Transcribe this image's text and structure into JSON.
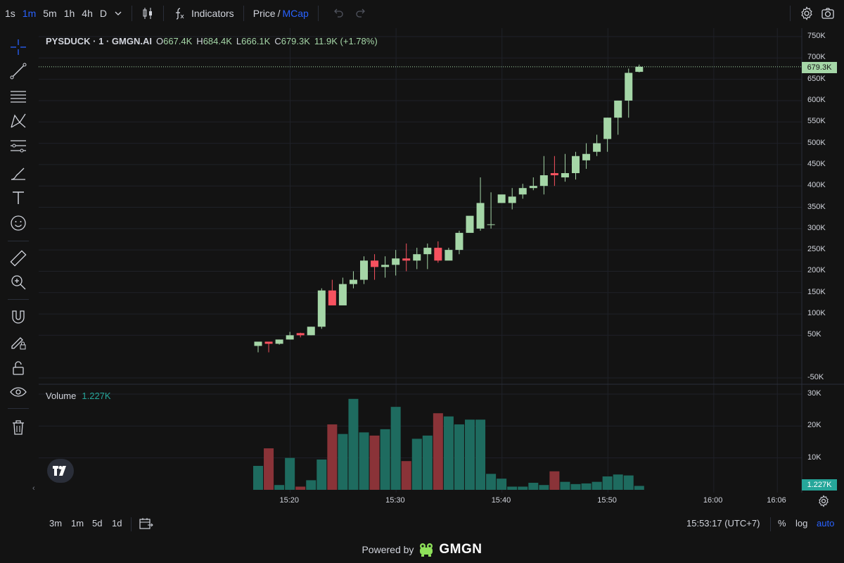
{
  "toolbar": {
    "intervals": [
      "1s",
      "1m",
      "5m",
      "1h",
      "4h",
      "D"
    ],
    "active_interval": "1m",
    "indicators_label": "Indicators",
    "price_label": "Price",
    "slash": "/",
    "mcap_label": "MCap"
  },
  "legend": {
    "symbol": "PYSDUCK · 1 · GMGN.AI",
    "o_label": "O",
    "o_value": "667.4K",
    "h_label": "H",
    "h_value": "684.4K",
    "l_label": "L",
    "l_value": "666.1K",
    "c_label": "C",
    "c_value": "679.3K",
    "change": "11.9K (+1.78%)"
  },
  "volume_legend": {
    "label": "Volume",
    "value": "1.227K"
  },
  "price_axis": {
    "labels": [
      "750K",
      "700K",
      "650K",
      "600K",
      "550K",
      "500K",
      "450K",
      "400K",
      "350K",
      "300K",
      "250K",
      "200K",
      "150K",
      "100K",
      "50K",
      "-50K"
    ],
    "current_price": "679.3K"
  },
  "volume_axis": {
    "labels": [
      "30K",
      "20K",
      "10K"
    ],
    "current_volume": "1.227K"
  },
  "time_axis": {
    "labels": [
      "15:20",
      "15:30",
      "15:40",
      "15:50",
      "16:00",
      "16:06"
    ]
  },
  "bottom": {
    "ranges": [
      "3m",
      "1m",
      "5d",
      "1d"
    ],
    "clock": "15:53:17 (UTC+7)",
    "percent_label": "%",
    "log_label": "log",
    "auto_label": "auto"
  },
  "footer": {
    "powered_by": "Powered by",
    "brand": "GMGN"
  },
  "colors": {
    "up": "#a5d6a7",
    "down": "#f7525f",
    "vol_up": "#1e6b5f",
    "vol_down": "#8a3338",
    "accent": "#2962ff",
    "background": "#131313"
  },
  "chart_data": {
    "type": "candlestick",
    "x": [
      "15:17",
      "15:18",
      "15:19",
      "15:20",
      "15:21",
      "15:22",
      "15:23",
      "15:24",
      "15:25",
      "15:26",
      "15:27",
      "15:28",
      "15:29",
      "15:30",
      "15:31",
      "15:32",
      "15:33",
      "15:34",
      "15:35",
      "15:36",
      "15:37",
      "15:38",
      "15:39",
      "15:40",
      "15:41",
      "15:42",
      "15:43",
      "15:44",
      "15:45",
      "15:46",
      "15:47",
      "15:48",
      "15:49",
      "15:50",
      "15:51",
      "15:52",
      "15:53"
    ],
    "open": [
      25,
      35,
      30,
      40,
      55,
      50,
      70,
      155,
      120,
      170,
      180,
      225,
      210,
      215,
      230,
      225,
      240,
      255,
      225,
      250,
      290,
      300,
      310,
      360,
      360,
      380,
      395,
      400,
      430,
      420,
      430,
      460,
      480,
      510,
      560,
      600,
      667.4
    ],
    "high": [
      35,
      35,
      40,
      58,
      56,
      70,
      160,
      180,
      185,
      200,
      235,
      240,
      235,
      250,
      265,
      255,
      265,
      270,
      255,
      295,
      320,
      420,
      385,
      375,
      395,
      405,
      420,
      470,
      470,
      475,
      480,
      500,
      520,
      560,
      600,
      675,
      684.4
    ],
    "low": [
      10,
      10,
      28,
      40,
      45,
      50,
      65,
      125,
      130,
      160,
      170,
      180,
      185,
      190,
      200,
      205,
      205,
      220,
      230,
      240,
      300,
      295,
      300,
      360,
      345,
      370,
      390,
      380,
      400,
      410,
      415,
      440,
      470,
      480,
      520,
      560,
      666.1
    ],
    "close": [
      35,
      30,
      40,
      50,
      50,
      70,
      155,
      120,
      170,
      180,
      225,
      210,
      215,
      230,
      225,
      240,
      255,
      225,
      250,
      290,
      330,
      360,
      310,
      380,
      375,
      395,
      400,
      425,
      425,
      430,
      470,
      475,
      500,
      560,
      600,
      665,
      679.3
    ],
    "volume": [
      7500,
      13000,
      1500,
      10000,
      1000,
      3000,
      9500,
      20500,
      17500,
      28500,
      18000,
      17000,
      19000,
      26000,
      9000,
      16000,
      17000,
      24000,
      23000,
      20500,
      22000,
      22000,
      5000,
      3500,
      1000,
      1000,
      2200,
      1500,
      5800,
      2500,
      1800,
      2000,
      2500,
      4200,
      4800,
      4500,
      1227
    ],
    "ylim": [
      -50000,
      750000
    ],
    "volume_ylim": [
      0,
      30000
    ],
    "yunits": "K"
  }
}
